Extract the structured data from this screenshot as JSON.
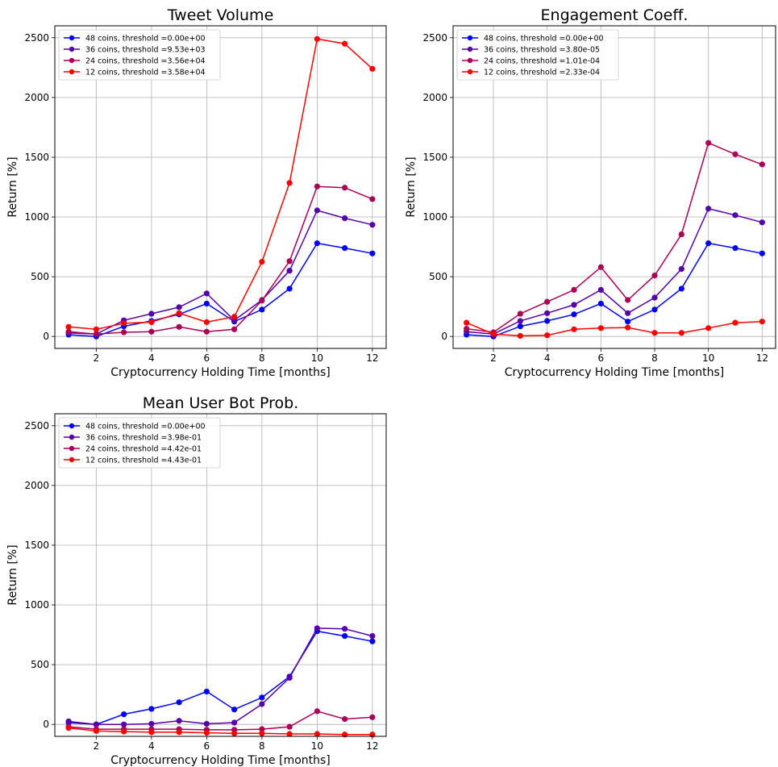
{
  "figure": {
    "x_label": "Cryptocurrency Holding Time [months]",
    "y_label": "Return [%]"
  },
  "chart_data": [
    {
      "type": "line",
      "title": "Tweet Volume",
      "xlabel": "Cryptocurrency Holding Time [months]",
      "ylabel": "Return [%]",
      "xlim": [
        0.5,
        12.5
      ],
      "ylim": [
        -100,
        2600
      ],
      "xticks": [
        2,
        4,
        6,
        8,
        10,
        12
      ],
      "yticks": [
        0,
        500,
        1000,
        1500,
        2000,
        2500
      ],
      "grid": true,
      "legend_position": "top-left",
      "x": [
        1,
        2,
        3,
        4,
        5,
        6,
        7,
        8,
        9,
        10,
        11,
        12
      ],
      "series": [
        {
          "name": "48 coins, threshold  =0.00e+00",
          "color": "#0000ff",
          "values": [
            15,
            0,
            85,
            130,
            185,
            275,
            125,
            225,
            400,
            780,
            740,
            695
          ]
        },
        {
          "name": "36 coins, threshold  =9.53e+03",
          "color": "#5500aa",
          "values": [
            30,
            20,
            135,
            190,
            245,
            360,
            135,
            305,
            550,
            1055,
            990,
            935
          ]
        },
        {
          "name": "24 coins, threshold  =3.56e+04",
          "color": "#aa0055",
          "values": [
            40,
            20,
            35,
            40,
            80,
            40,
            60,
            300,
            630,
            1255,
            1245,
            1150
          ]
        },
        {
          "name": "12 coins, threshold  =3.58e+04",
          "color": "#ff0000",
          "values": [
            80,
            60,
            110,
            120,
            195,
            120,
            165,
            625,
            1285,
            2490,
            2450,
            2240
          ]
        }
      ]
    },
    {
      "type": "line",
      "title": "Engagement Coeff.",
      "xlabel": "Cryptocurrency Holding Time [months]",
      "ylabel": "Return [%]",
      "xlim": [
        0.5,
        12.5
      ],
      "ylim": [
        -100,
        2600
      ],
      "xticks": [
        2,
        4,
        6,
        8,
        10,
        12
      ],
      "yticks": [
        0,
        500,
        1000,
        1500,
        2000,
        2500
      ],
      "grid": true,
      "legend_position": "top-left",
      "x": [
        1,
        2,
        3,
        4,
        5,
        6,
        7,
        8,
        9,
        10,
        11,
        12
      ],
      "series": [
        {
          "name": "48 coins, threshold  =0.00e+00",
          "color": "#0000ff",
          "values": [
            15,
            0,
            85,
            130,
            185,
            275,
            125,
            225,
            400,
            780,
            740,
            695
          ]
        },
        {
          "name": "36 coins, threshold  =3.80e-05",
          "color": "#5500aa",
          "values": [
            40,
            20,
            130,
            195,
            265,
            390,
            195,
            325,
            565,
            1070,
            1015,
            955
          ]
        },
        {
          "name": "24 coins, threshold  =1.01e-04",
          "color": "#aa0055",
          "values": [
            65,
            35,
            190,
            290,
            390,
            580,
            305,
            510,
            855,
            1620,
            1525,
            1440
          ]
        },
        {
          "name": "12 coins, threshold  =2.33e-04",
          "color": "#ff0000",
          "values": [
            115,
            20,
            5,
            10,
            60,
            70,
            75,
            30,
            30,
            70,
            115,
            125
          ]
        }
      ]
    },
    {
      "type": "line",
      "title": "Mean User Bot Prob.",
      "xlabel": "Cryptocurrency Holding Time [months]",
      "ylabel": "Return [%]",
      "xlim": [
        0.5,
        12.5
      ],
      "ylim": [
        -100,
        2600
      ],
      "xticks": [
        2,
        4,
        6,
        8,
        10,
        12
      ],
      "yticks": [
        0,
        500,
        1000,
        1500,
        2000,
        2500
      ],
      "grid": true,
      "legend_position": "top-left",
      "x": [
        1,
        2,
        3,
        4,
        5,
        6,
        7,
        8,
        9,
        10,
        11,
        12
      ],
      "series": [
        {
          "name": "48 coins, threshold  =0.00e+00",
          "color": "#0000ff",
          "values": [
            15,
            0,
            85,
            130,
            185,
            275,
            125,
            225,
            400,
            780,
            740,
            695
          ]
        },
        {
          "name": "36 coins, threshold  =3.98e-01",
          "color": "#5500aa",
          "values": [
            25,
            0,
            0,
            5,
            30,
            5,
            15,
            170,
            390,
            805,
            800,
            740
          ]
        },
        {
          "name": "24 coins, threshold  =4.42e-01",
          "color": "#aa0055",
          "values": [
            -20,
            -40,
            -40,
            -40,
            -40,
            -45,
            -45,
            -40,
            -20,
            110,
            45,
            60
          ]
        },
        {
          "name": "12 coins, threshold  =4.43e-01",
          "color": "#ff0000",
          "values": [
            -30,
            -55,
            -60,
            -65,
            -65,
            -70,
            -75,
            -75,
            -80,
            -80,
            -85,
            -85
          ]
        }
      ]
    }
  ]
}
